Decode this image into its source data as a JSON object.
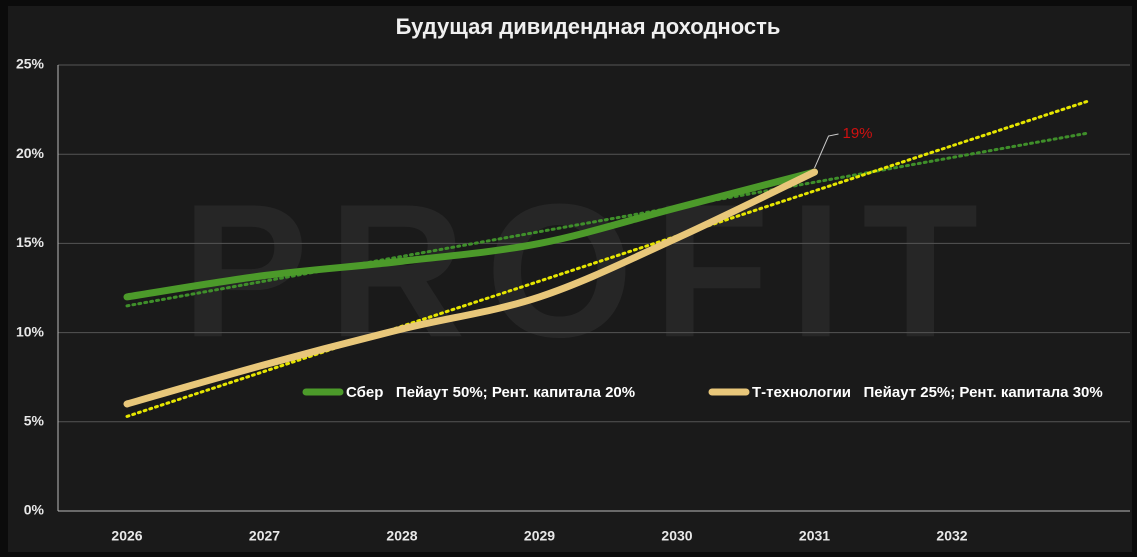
{
  "chart_data": {
    "type": "line",
    "title": "Будущая дивидендная доходность",
    "watermark": "PROFIT",
    "categories": [
      "2026",
      "2027",
      "2028",
      "2029",
      "2030",
      "2031",
      "2032"
    ],
    "series": [
      {
        "name": "Сбер   Пейаут 50%; Рент. капитала 20%",
        "color": "#4c9a2a",
        "values": [
          12,
          13.2,
          14,
          15,
          17,
          19,
          null
        ]
      },
      {
        "name": "Т-технологии   Пейаут 25%; Рент. капитала 30%",
        "color": "#e8c77a",
        "values": [
          6,
          8.2,
          10.2,
          12,
          15.3,
          19,
          null
        ]
      }
    ],
    "trendlines": [
      {
        "color": "#3f8f2a",
        "values": [
          11.5,
          21.2
        ]
      },
      {
        "color": "#e6e600",
        "values": [
          5.3,
          23
        ]
      }
    ],
    "annotation": "19%",
    "annotation_color": "#d01010",
    "ylim": [
      0,
      25
    ],
    "yticks": [
      {
        "value": 0,
        "label": "0%"
      },
      {
        "value": 5,
        "label": "5%"
      },
      {
        "value": 10,
        "label": "10%"
      },
      {
        "value": 15,
        "label": "15%"
      },
      {
        "value": 20,
        "label": "20%"
      },
      {
        "value": 25,
        "label": "25%"
      }
    ],
    "grid": true
  }
}
